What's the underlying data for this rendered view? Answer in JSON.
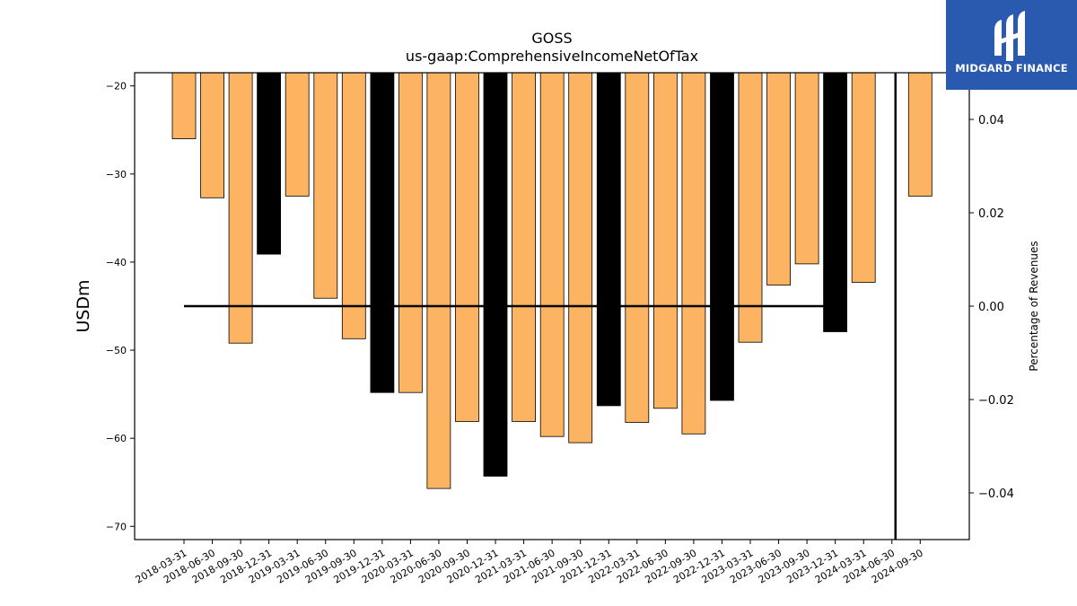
{
  "chart_data": {
    "type": "bar",
    "title": "GOSS",
    "subtitle": "us-gaap:ComprehensiveIncomeNetOfTax",
    "ylabel": "USDm",
    "ylabel_right": "Percentage of Revenues",
    "ylim": [
      -71.5,
      -18.5
    ],
    "yticks": [
      -20,
      -30,
      -40,
      -50,
      -60,
      -70
    ],
    "ylim_right": [
      -0.05,
      0.05
    ],
    "yticks_right": [
      "0.04",
      "0.02",
      "0.00",
      "−0.02",
      "−0.04"
    ],
    "yticks_right_values": [
      0.04,
      0.02,
      0.0,
      -0.02,
      -0.04
    ],
    "categories": [
      "2018-03-31",
      "2018-06-30",
      "2018-09-30",
      "2018-12-31",
      "2019-03-31",
      "2019-06-30",
      "2019-09-30",
      "2019-12-31",
      "2020-03-31",
      "2020-06-30",
      "2020-09-30",
      "2020-12-31",
      "2021-03-31",
      "2021-06-30",
      "2021-09-30",
      "2021-12-31",
      "2022-03-31",
      "2022-06-30",
      "2022-09-30",
      "2022-12-31",
      "2023-03-31",
      "2023-06-30",
      "2023-09-30",
      "2023-12-31",
      "2024-03-31",
      "2024-06-30",
      "2024-09-30"
    ],
    "values": [
      -26.0,
      -32.7,
      -49.2,
      -39.1,
      -32.5,
      -44.1,
      -48.7,
      -54.8,
      -54.8,
      -65.7,
      -58.1,
      -64.3,
      -58.1,
      -59.8,
      -60.5,
      -56.3,
      -58.2,
      -56.6,
      -59.5,
      -55.7,
      -49.1,
      -42.6,
      -40.2,
      -47.9,
      -42.3,
      null,
      -32.5
    ],
    "highlight": [
      false,
      false,
      false,
      true,
      false,
      false,
      false,
      true,
      false,
      false,
      false,
      true,
      false,
      false,
      false,
      true,
      false,
      false,
      false,
      true,
      false,
      false,
      false,
      true,
      false,
      false,
      false
    ],
    "colors": {
      "normal": "#fdb462",
      "highlight": "#000000",
      "edge": "#000000"
    },
    "line_series": {
      "axis": "right",
      "x_from": "2018-03-31",
      "x_to": "2023-12-31",
      "value": 0.0,
      "jump_at": "2023-12-31",
      "jump_to": 0.05,
      "vertical_at": "2024-06-30",
      "vertical_from": 0.05,
      "vertical_to": -0.05
    },
    "legend": "none",
    "grid": false
  },
  "logo": {
    "text": "MIDGARD FINANCE",
    "background": "#2a5ab0"
  }
}
